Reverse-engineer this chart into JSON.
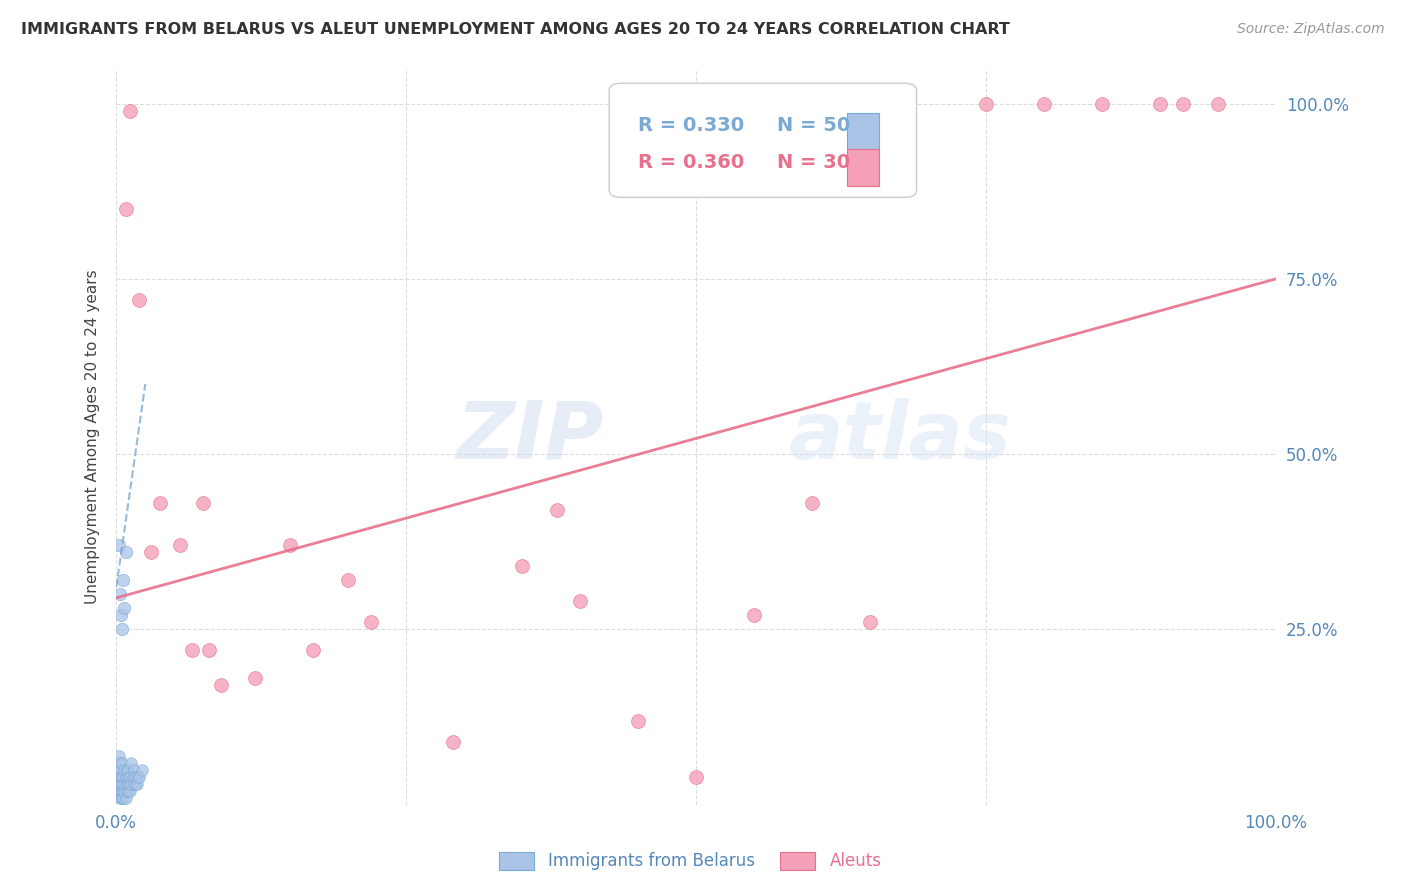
{
  "title": "IMMIGRANTS FROM BELARUS VS ALEUT UNEMPLOYMENT AMONG AGES 20 TO 24 YEARS CORRELATION CHART",
  "source": "Source: ZipAtlas.com",
  "ylabel": "Unemployment Among Ages 20 to 24 years",
  "legend_blue_r": "R = 0.330",
  "legend_blue_n": "N = 50",
  "legend_pink_r": "R = 0.360",
  "legend_pink_n": "N = 30",
  "blue_label": "Immigrants from Belarus",
  "pink_label": "Aleuts",
  "blue_color": "#aac4e8",
  "pink_color": "#f4a0b8",
  "blue_line_color": "#7aaad4",
  "pink_line_color": "#e8708c",
  "watermark": "ZIPatlas",
  "blue_scatter_x": [
    0.001,
    0.001,
    0.001,
    0.002,
    0.002,
    0.002,
    0.002,
    0.003,
    0.003,
    0.003,
    0.003,
    0.004,
    0.004,
    0.004,
    0.004,
    0.005,
    0.005,
    0.005,
    0.005,
    0.005,
    0.006,
    0.006,
    0.006,
    0.007,
    0.007,
    0.007,
    0.008,
    0.008,
    0.008,
    0.009,
    0.009,
    0.009,
    0.01,
    0.01,
    0.01,
    0.011,
    0.011,
    0.012,
    0.012,
    0.013,
    0.013,
    0.014,
    0.015,
    0.015,
    0.016,
    0.017,
    0.018,
    0.019,
    0.02,
    0.022
  ],
  "blue_scatter_y": [
    0.02,
    0.03,
    0.04,
    0.02,
    0.03,
    0.05,
    0.07,
    0.01,
    0.02,
    0.04,
    0.06,
    0.01,
    0.02,
    0.03,
    0.05,
    0.01,
    0.02,
    0.03,
    0.04,
    0.06,
    0.01,
    0.02,
    0.04,
    0.02,
    0.03,
    0.05,
    0.01,
    0.03,
    0.04,
    0.02,
    0.04,
    0.05,
    0.02,
    0.03,
    0.05,
    0.03,
    0.04,
    0.02,
    0.04,
    0.03,
    0.06,
    0.04,
    0.03,
    0.05,
    0.04,
    0.03,
    0.03,
    0.04,
    0.04,
    0.05
  ],
  "blue_extra_x": [
    0.002,
    0.003,
    0.004,
    0.005,
    0.006,
    0.007,
    0.008
  ],
  "blue_extra_y": [
    0.37,
    0.3,
    0.27,
    0.25,
    0.32,
    0.28,
    0.36
  ],
  "pink_scatter_x": [
    0.008,
    0.012,
    0.02,
    0.03,
    0.038,
    0.055,
    0.065,
    0.075,
    0.08,
    0.09,
    0.12,
    0.15,
    0.17,
    0.2,
    0.22,
    0.29,
    0.35,
    0.38,
    0.4,
    0.45,
    0.5,
    0.55,
    0.6,
    0.65,
    0.75,
    0.8,
    0.85,
    0.9,
    0.92,
    0.95
  ],
  "pink_scatter_y": [
    0.85,
    0.99,
    0.72,
    0.36,
    0.43,
    0.37,
    0.22,
    0.43,
    0.22,
    0.17,
    0.18,
    0.37,
    0.22,
    0.32,
    0.26,
    0.09,
    0.34,
    0.42,
    0.29,
    0.12,
    0.04,
    0.27,
    0.43,
    0.26,
    1.0,
    1.0,
    1.0,
    1.0,
    1.0,
    1.0
  ],
  "blue_line_x": [
    0.0,
    0.025
  ],
  "blue_line_y": [
    0.31,
    0.6
  ],
  "pink_line_x": [
    0.0,
    1.0
  ],
  "pink_line_y": [
    0.295,
    0.75
  ],
  "xlim": [
    0.0,
    1.0
  ],
  "ylim": [
    0.0,
    1.05
  ],
  "xticks": [
    0.0,
    0.25,
    0.5,
    0.75,
    1.0
  ],
  "xticklabels": [
    "0.0%",
    "",
    "",
    "",
    "100.0%"
  ],
  "yticks_right": [
    0.25,
    0.5,
    0.75,
    1.0
  ],
  "yticklabels_right": [
    "25.0%",
    "50.0%",
    "75.0%",
    "100.0%"
  ]
}
